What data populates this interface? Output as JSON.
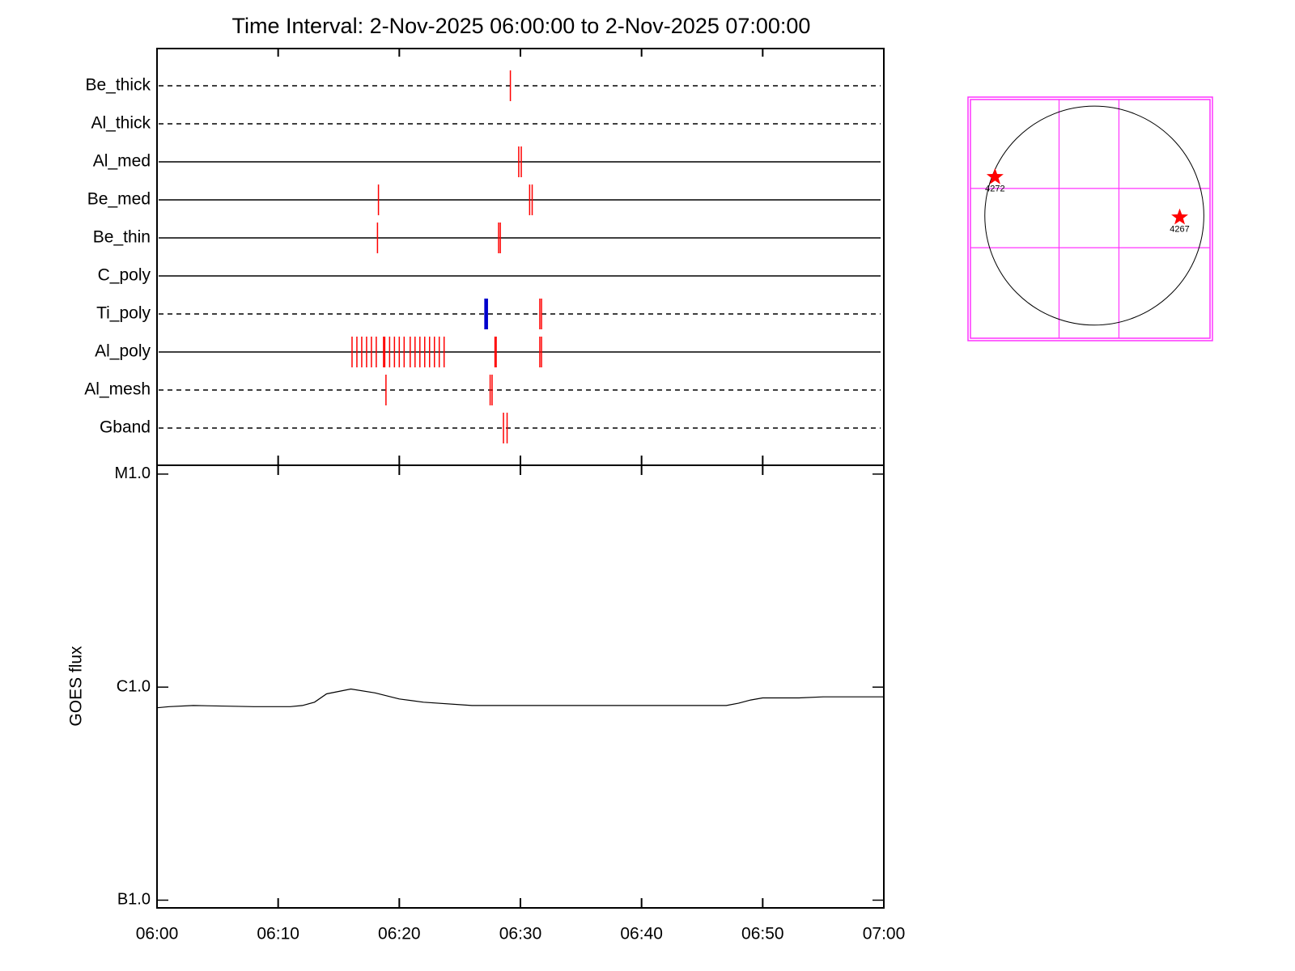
{
  "chart_data": [
    {
      "type": "timeline",
      "title": "Time Interval:  2-Nov-2025 06:00:00 to  2-Nov-2025 07:00:00",
      "xlim": [
        0,
        60
      ],
      "rows": [
        {
          "label": "Be_thick",
          "line": "dashed",
          "color": "#ff0000",
          "times": [
            29.17
          ]
        },
        {
          "label": "Al_thick",
          "line": "dashed",
          "color": "#ff0000",
          "times": []
        },
        {
          "label": "Al_med",
          "line": "solid",
          "color": "#ff0000",
          "times": [
            29.86,
            30.07
          ]
        },
        {
          "label": "Be_med",
          "line": "solid",
          "color": "#ff0000",
          "times": [
            18.28,
            30.76,
            30.97
          ]
        },
        {
          "label": "Be_thin",
          "line": "solid",
          "color": "#ff0000",
          "times": [
            18.2,
            28.2,
            28.34
          ]
        },
        {
          "label": "C_poly",
          "line": "solid",
          "color": "#ff0000",
          "times": []
        },
        {
          "label": "Ti_poly",
          "line": "dashed",
          "color": "#ff0000",
          "times": [
            31.6,
            31.74
          ],
          "times2": [
            27.1,
            27.24
          ],
          "color2": "#0000cc"
        },
        {
          "label": "Al_poly",
          "line": "solid",
          "color": "#ff0000",
          "times": [
            16.1,
            16.5,
            16.9,
            17.3,
            17.7,
            18.1,
            18.7,
            18.8,
            19.2,
            19.6,
            20.0,
            20.4,
            20.9,
            21.3,
            21.7,
            22.1,
            22.5,
            22.9,
            23.3,
            23.7,
            27.9,
            28.0,
            31.6,
            31.74
          ]
        },
        {
          "label": "Al_mesh",
          "line": "dashed",
          "color": "#ff0000",
          "times": [
            18.9,
            27.5,
            27.66
          ]
        },
        {
          "label": "Gband",
          "line": "dashed",
          "color": "#ff0000",
          "times": [
            28.6,
            28.9
          ]
        }
      ]
    },
    {
      "type": "line",
      "ylabel": "GOES flux",
      "log_y": true,
      "xlim": [
        0,
        60
      ],
      "xticks": [
        {
          "value": 0,
          "label": "06:00"
        },
        {
          "value": 10,
          "label": "06:10"
        },
        {
          "value": 20,
          "label": "06:20"
        },
        {
          "value": 30,
          "label": "06:30"
        },
        {
          "value": 40,
          "label": "06:40"
        },
        {
          "value": 50,
          "label": "06:50"
        },
        {
          "value": 60,
          "label": "07:00"
        }
      ],
      "ylim": [
        9.2e-08,
        1.1e-05
      ],
      "yticks": [
        {
          "value": 1e-07,
          "label": "B1.0"
        },
        {
          "value": 1e-06,
          "label": "C1.0"
        },
        {
          "value": 1e-05,
          "label": "M1.0"
        }
      ],
      "color": "#000000",
      "x": [
        0,
        1,
        3,
        8,
        11,
        12,
        13,
        14,
        16,
        18,
        20,
        22,
        26,
        30,
        40,
        47,
        48,
        49,
        50,
        53,
        55,
        60
      ],
      "values": [
        8e-07,
        8.1e-07,
        8.2e-07,
        8.1e-07,
        8.1e-07,
        8.2e-07,
        8.5e-07,
        9.3e-07,
        9.8e-07,
        9.4e-07,
        8.8e-07,
        8.5e-07,
        8.2e-07,
        8.2e-07,
        8.2e-07,
        8.2e-07,
        8.4e-07,
        8.7e-07,
        8.9e-07,
        8.9e-07,
        9e-07,
        9e-07
      ]
    },
    {
      "type": "map",
      "xlim": [
        -1103,
        1030
      ],
      "ylim": [
        -1088,
        1030
      ],
      "grid_x": [
        -314,
        219
      ],
      "grid_y": [
        -285,
        241
      ],
      "radius": 975,
      "grid_color": "#ff33ff",
      "marker_color": "#ff0000",
      "points": [
        {
          "label": "4272",
          "x": -884,
          "y": 343
        },
        {
          "label": "4267",
          "x": 760,
          "y": -15
        }
      ]
    }
  ]
}
